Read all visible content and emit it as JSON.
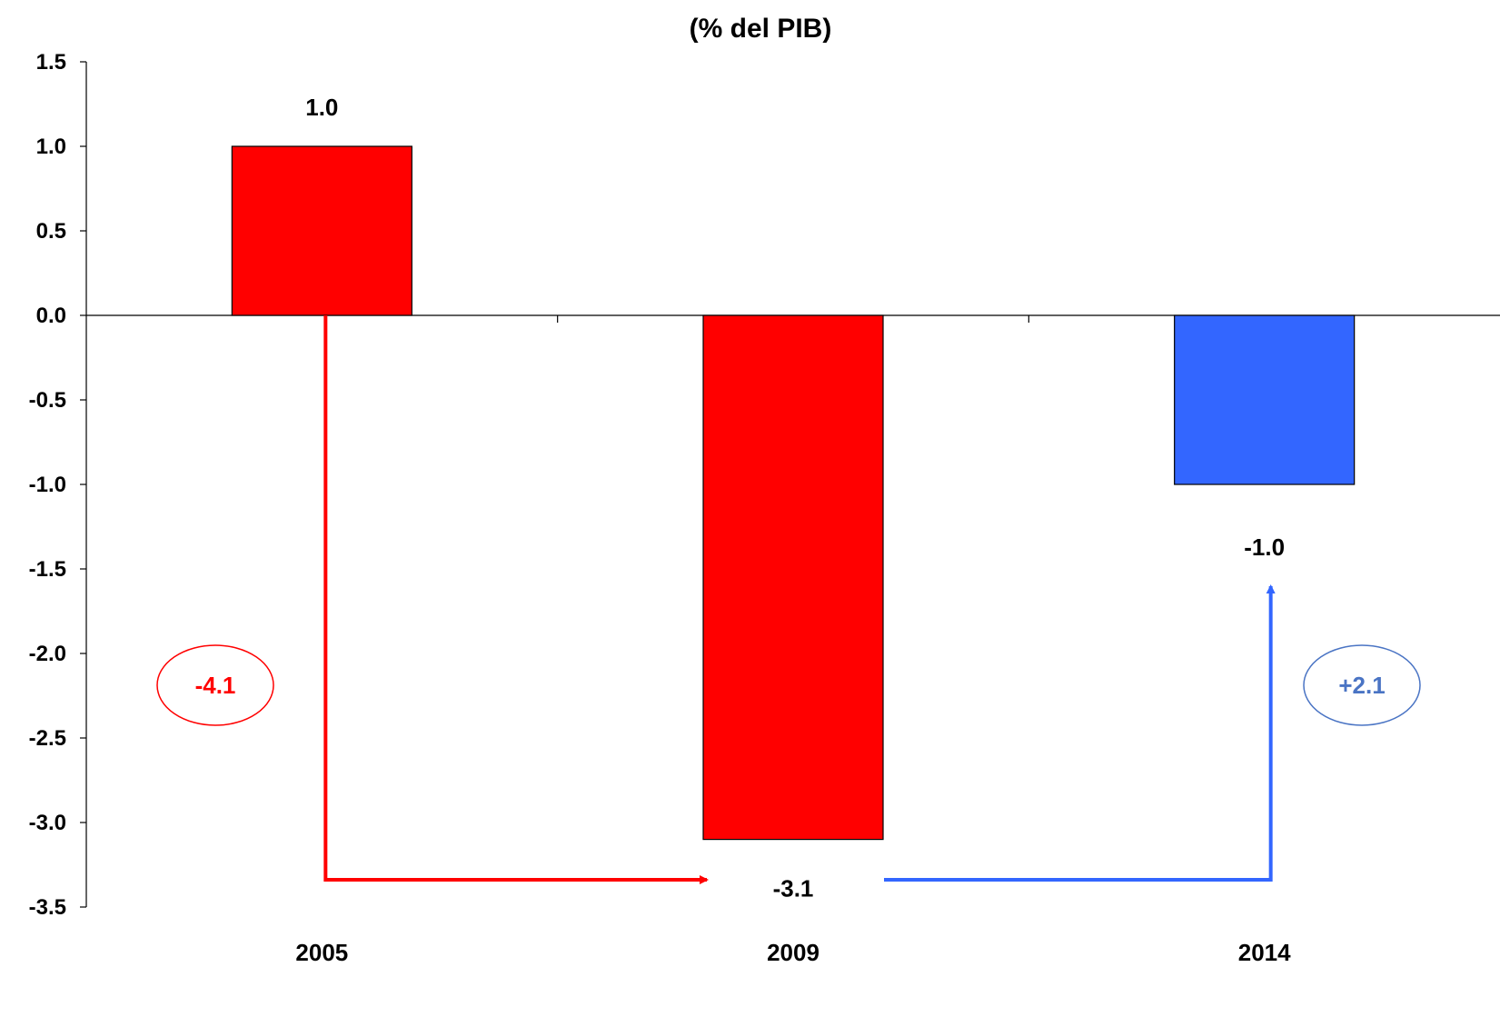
{
  "chart_data": {
    "type": "bar",
    "title": "(% del PIB)",
    "xlabel": "",
    "ylabel": "",
    "ylim": [
      -3.5,
      1.5
    ],
    "yticks": [
      "1.5",
      "1.0",
      "0.5",
      "0.0",
      "-0.5",
      "-1.0",
      "-1.5",
      "-2.0",
      "-2.5",
      "-3.0",
      "-3.5"
    ],
    "categories": [
      "2005",
      "2009",
      "2014"
    ],
    "values": [
      1.0,
      -3.1,
      -1.0
    ],
    "value_labels": [
      "1.0",
      "-3.1",
      "-1.0"
    ],
    "bar_colors": [
      "#ff0000",
      "#ff0000",
      "#3366ff"
    ],
    "grid": false,
    "annotations": [
      {
        "text": "-4.1",
        "color": "#ff0000",
        "from": "2005",
        "to": "2009"
      },
      {
        "text": "+2.1",
        "color": "#4a74c4",
        "from": "2009",
        "to": "2014"
      }
    ],
    "arrow_colors": [
      "#ff0000",
      "#3366ff"
    ]
  }
}
